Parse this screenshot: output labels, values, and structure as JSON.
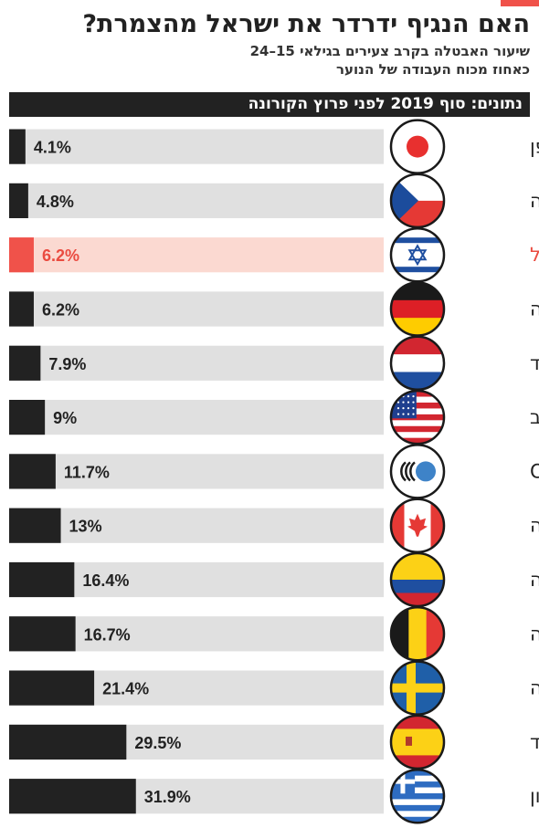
{
  "header": {
    "title": "האם הנגיף ידרדר את ישראל מהצמרת?",
    "subtitle_line1": "שיעור האבטלה בקרב צעירים בגילאי 15–24",
    "subtitle_line2": "כאחוז מכוח העבודה של הנוער",
    "banner": "נתונים: סוף 2019 לפני פרוץ הקורונה"
  },
  "colors": {
    "accent": "#f0524a",
    "bar": "#222222",
    "highlight_bar": "#f0524a",
    "track": "#e0e0e0",
    "highlight_track": "#fbd9d1",
    "highlight_text": "#ea4b40"
  },
  "chart_data": {
    "type": "bar",
    "orientation": "horizontal",
    "unit": "%",
    "categories": [
      "יפן",
      "צ׳כיה",
      "ישראל",
      "גרמניה",
      "הולנד",
      "ארה״ב",
      "OECD",
      "קנדה",
      "קולומביה",
      "בלגיה",
      "שבדיה",
      "ספרד",
      "יוון"
    ],
    "values": [
      4.1,
      4.8,
      6.2,
      6.2,
      7.9,
      9,
      11.7,
      13,
      16.4,
      16.7,
      21.4,
      29.5,
      31.9
    ],
    "value_labels": [
      "4.1%",
      "4.8%",
      "6.2%",
      "6.2%",
      "7.9%",
      "9%",
      "11.7%",
      "13%",
      "16.4%",
      "16.7%",
      "21.4%",
      "29.5%",
      "31.9%"
    ],
    "highlight_category": "ישראל",
    "flag_icons": [
      "japan-flag-icon",
      "czechia-flag-icon",
      "israel-flag-icon",
      "germany-flag-icon",
      "netherlands-flag-icon",
      "usa-flag-icon",
      "oecd-logo-icon",
      "canada-flag-icon",
      "colombia-flag-icon",
      "belgium-flag-icon",
      "sweden-flag-icon",
      "spain-flag-icon",
      "greece-flag-icon"
    ],
    "xlim": [
      0,
      100
    ],
    "grid": false,
    "legend": "none"
  }
}
